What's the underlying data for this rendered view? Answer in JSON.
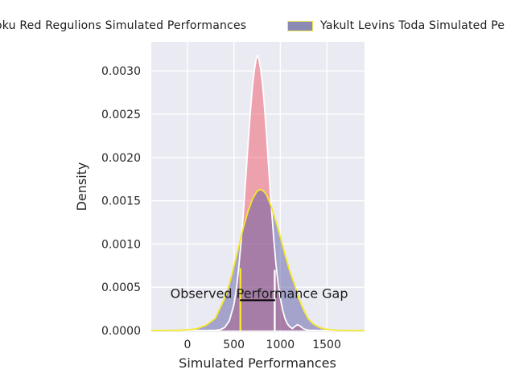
{
  "figure": {
    "background": "#ffffff",
    "plot_bg": "#eaeaf2",
    "grid_color": "#ffffff",
    "tick_color": "#262626",
    "text_color": "#1c1c1c"
  },
  "legend": {
    "entries": [
      {
        "label": "oku Red Regulions Simulated Performances",
        "swatch_visible": false
      },
      {
        "label": "Yakult Levins Toda Simulated Pe",
        "swatch_visible": true,
        "swatch_fill": "#8a8ab4",
        "swatch_border": "#f0e654"
      }
    ]
  },
  "chart_data": {
    "type": "area",
    "title": "",
    "xlabel": "Simulated Performances",
    "ylabel": "Density",
    "xlim": [
      -390,
      1907
    ],
    "ylim": [
      -1.86e-05,
      0.003336
    ],
    "grid": true,
    "legend_position": "top",
    "x_ticks": [
      {
        "label": "0",
        "value": 0
      },
      {
        "label": "500",
        "value": 500
      },
      {
        "label": "1000",
        "value": 1000
      },
      {
        "label": "1500",
        "value": 1500
      }
    ],
    "y_ticks": [
      {
        "label": "0.0000",
        "value": 0.0
      },
      {
        "label": "0.0005",
        "value": 0.0005
      },
      {
        "label": "0.0010",
        "value": 0.001
      },
      {
        "label": "0.0015",
        "value": 0.0015
      },
      {
        "label": "0.0020",
        "value": 0.002
      },
      {
        "label": "0.0025",
        "value": 0.0025
      },
      {
        "label": "0.0030",
        "value": 0.003
      }
    ],
    "series": [
      {
        "name": "oku Red Regulions Simulated Performances",
        "fill": "rgba(242,74,88,0.45)",
        "edge": "#ffffff",
        "peak": {
          "x": 755,
          "density": 0.00318
        },
        "points": [
          [
            -390,
            0
          ],
          [
            200,
            0
          ],
          [
            300,
            2e-06
          ],
          [
            350,
            9e-06
          ],
          [
            400,
            3.4e-05
          ],
          [
            450,
            0.00011
          ],
          [
            500,
            0.0003
          ],
          [
            525,
            0.00047
          ],
          [
            550,
            0.0007
          ],
          [
            575,
            0.00099
          ],
          [
            600,
            0.00133
          ],
          [
            625,
            0.00172
          ],
          [
            650,
            0.00212
          ],
          [
            675,
            0.0025
          ],
          [
            700,
            0.00283
          ],
          [
            720,
            0.00301
          ],
          [
            740,
            0.00314
          ],
          [
            755,
            0.00318
          ],
          [
            770,
            0.00314
          ],
          [
            790,
            0.00301
          ],
          [
            810,
            0.00284
          ],
          [
            830,
            0.00258
          ],
          [
            850,
            0.00228
          ],
          [
            875,
            0.00188
          ],
          [
            900,
            0.00148
          ],
          [
            925,
            0.00112
          ],
          [
            950,
            0.0008
          ],
          [
            975,
            0.00055
          ],
          [
            1000,
            0.00037
          ],
          [
            1025,
            0.00024
          ],
          [
            1050,
            0.00014
          ],
          [
            1075,
            8e-05
          ],
          [
            1100,
            4.5e-05
          ],
          [
            1130,
            2.2e-05
          ],
          [
            1160,
            5e-05
          ],
          [
            1185,
            6.8e-05
          ],
          [
            1215,
            5e-05
          ],
          [
            1250,
            2e-05
          ],
          [
            1300,
            4e-06
          ],
          [
            1400,
            1e-06
          ],
          [
            1907,
            0
          ]
        ]
      },
      {
        "name": "Yakult Levins Toda Simulated Pe",
        "fill": "rgba(86,86,160,0.48)",
        "edge": "#f5e82a",
        "peak": {
          "x": 785,
          "density": 0.00163
        },
        "points": [
          [
            -390,
            0
          ],
          [
            -200,
            1e-06
          ],
          [
            -100,
            3e-06
          ],
          [
            0,
            7e-06
          ],
          [
            100,
            2e-05
          ],
          [
            200,
            6e-05
          ],
          [
            300,
            0.00014
          ],
          [
            400,
            0.00037
          ],
          [
            450,
            0.00053
          ],
          [
            500,
            0.00074
          ],
          [
            550,
            0.00096
          ],
          [
            600,
            0.00118
          ],
          [
            650,
            0.00137
          ],
          [
            700,
            0.00152
          ],
          [
            750,
            0.00161
          ],
          [
            785,
            0.00163
          ],
          [
            820,
            0.00161
          ],
          [
            850,
            0.00157
          ],
          [
            900,
            0.00144
          ],
          [
            950,
            0.00127
          ],
          [
            1000,
            0.00108
          ],
          [
            1050,
            0.00088
          ],
          [
            1100,
            0.00069
          ],
          [
            1150,
            0.00054
          ],
          [
            1200,
            0.00037
          ],
          [
            1250,
            0.00024
          ],
          [
            1300,
            0.000135
          ],
          [
            1350,
            8e-05
          ],
          [
            1400,
            4.6e-05
          ],
          [
            1450,
            2.5e-05
          ],
          [
            1500,
            1.35e-05
          ],
          [
            1600,
            3.5e-06
          ],
          [
            1700,
            1e-06
          ],
          [
            1907,
            0
          ]
        ]
      }
    ],
    "vlines": [
      {
        "name": "yakult-observed",
        "x": 570,
        "ymax": 0.00072,
        "color": "#f5e82a",
        "width": 2.4
      },
      {
        "name": "red-observed",
        "x": 940,
        "ymax": 0.0007,
        "color": "#ffffff",
        "width": 2.4
      }
    ],
    "gap_line": {
      "x1": 565,
      "x2": 945,
      "y": 0.00035,
      "color": "#000000",
      "width": 2
    },
    "annotation": {
      "text": "Observed Performance Gap",
      "x": 772,
      "y": 0.000375
    }
  }
}
